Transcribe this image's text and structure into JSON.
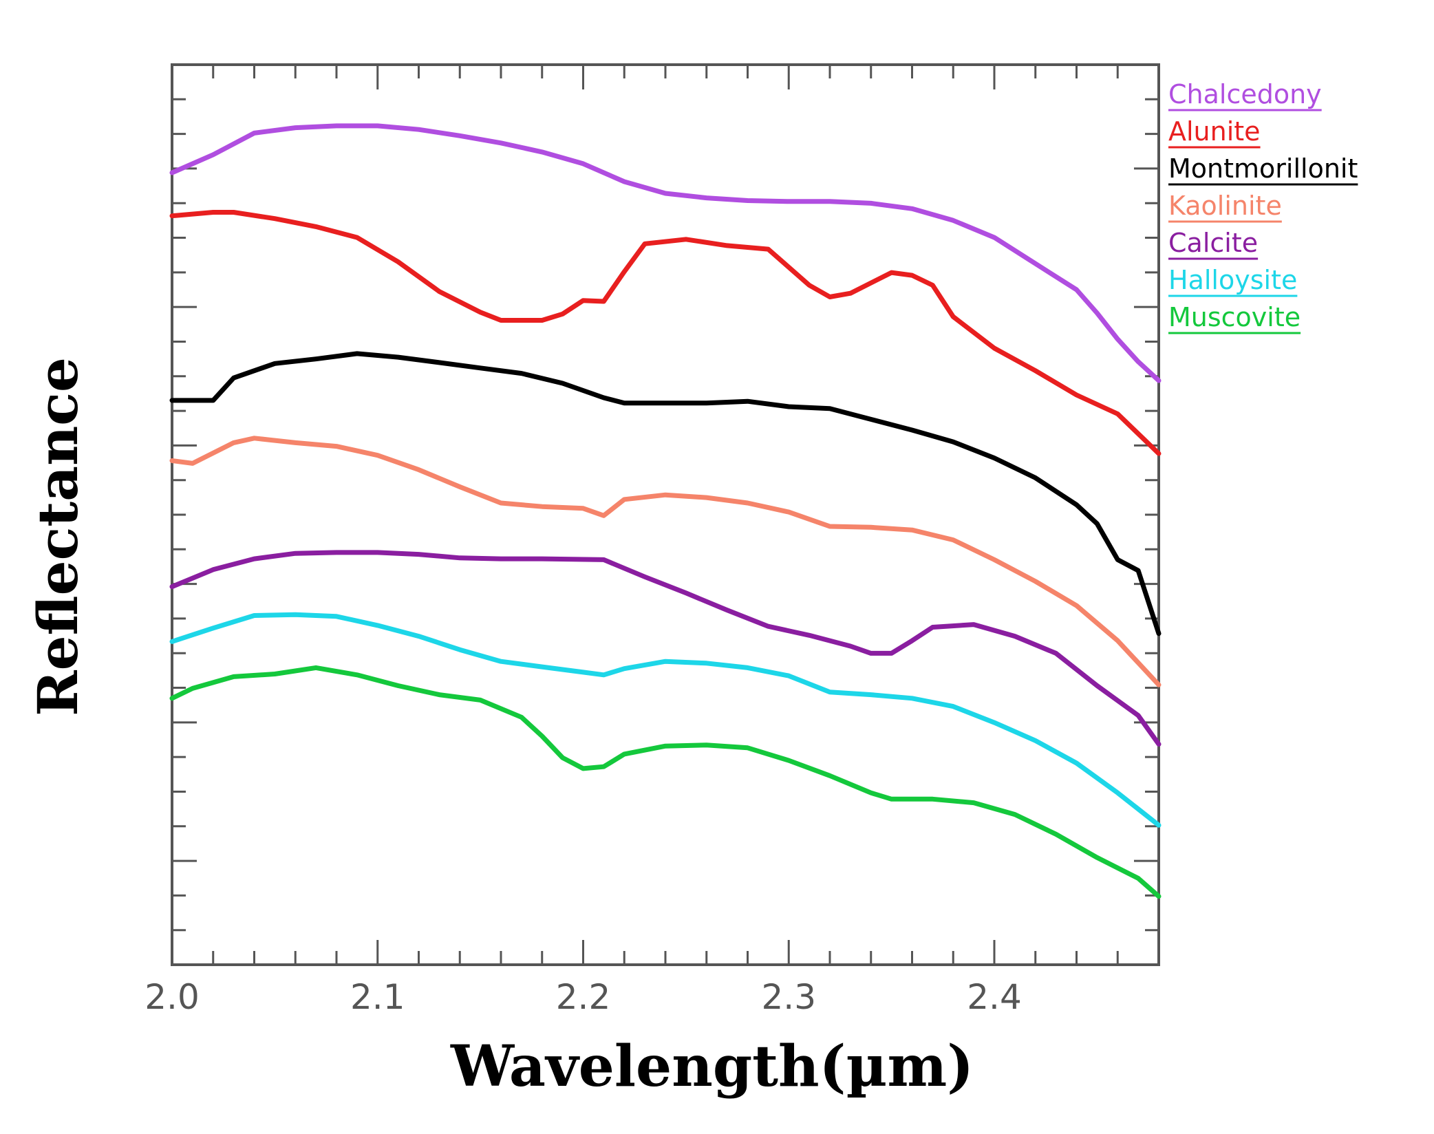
{
  "chart_data": {
    "type": "line",
    "title": "",
    "xlabel": "Wavelength(µm)",
    "ylabel": "Reflectance",
    "xlim": [
      2.0,
      2.48
    ],
    "ylim": [
      0,
      1
    ],
    "x_ticks": [
      "2.0",
      "2.1",
      "2.2",
      "2.3",
      "2.4"
    ],
    "x_tick_values": [
      2.0,
      2.1,
      2.2,
      2.3,
      2.4
    ],
    "grid": false,
    "legend_position": "right",
    "series": [
      {
        "name": "Chalcedony",
        "color": "#b04ee0",
        "points": [
          [
            2.0,
            0.88
          ],
          [
            2.02,
            0.9
          ],
          [
            2.04,
            0.924
          ],
          [
            2.06,
            0.93
          ],
          [
            2.08,
            0.932
          ],
          [
            2.1,
            0.932
          ],
          [
            2.12,
            0.928
          ],
          [
            2.14,
            0.921
          ],
          [
            2.16,
            0.913
          ],
          [
            2.18,
            0.903
          ],
          [
            2.2,
            0.89
          ],
          [
            2.22,
            0.87
          ],
          [
            2.24,
            0.857
          ],
          [
            2.26,
            0.852
          ],
          [
            2.28,
            0.849
          ],
          [
            2.3,
            0.848
          ],
          [
            2.32,
            0.848
          ],
          [
            2.34,
            0.846
          ],
          [
            2.36,
            0.84
          ],
          [
            2.38,
            0.827
          ],
          [
            2.4,
            0.808
          ],
          [
            2.42,
            0.779
          ],
          [
            2.44,
            0.75
          ],
          [
            2.45,
            0.724
          ],
          [
            2.46,
            0.695
          ],
          [
            2.47,
            0.67
          ],
          [
            2.48,
            0.649
          ]
        ]
      },
      {
        "name": "Alunite",
        "color": "#e81f1f",
        "points": [
          [
            2.0,
            0.832
          ],
          [
            2.02,
            0.836
          ],
          [
            2.03,
            0.836
          ],
          [
            2.05,
            0.829
          ],
          [
            2.07,
            0.82
          ],
          [
            2.09,
            0.808
          ],
          [
            2.11,
            0.781
          ],
          [
            2.13,
            0.748
          ],
          [
            2.15,
            0.725
          ],
          [
            2.16,
            0.716
          ],
          [
            2.18,
            0.716
          ],
          [
            2.19,
            0.723
          ],
          [
            2.2,
            0.738
          ],
          [
            2.21,
            0.737
          ],
          [
            2.22,
            0.77
          ],
          [
            2.23,
            0.801
          ],
          [
            2.25,
            0.806
          ],
          [
            2.27,
            0.799
          ],
          [
            2.29,
            0.795
          ],
          [
            2.31,
            0.755
          ],
          [
            2.32,
            0.742
          ],
          [
            2.33,
            0.746
          ],
          [
            2.35,
            0.769
          ],
          [
            2.36,
            0.766
          ],
          [
            2.37,
            0.755
          ],
          [
            2.38,
            0.72
          ],
          [
            2.4,
            0.685
          ],
          [
            2.42,
            0.66
          ],
          [
            2.44,
            0.633
          ],
          [
            2.46,
            0.612
          ],
          [
            2.48,
            0.568
          ]
        ]
      },
      {
        "name": "Montmorillonit",
        "color": "#000000",
        "points": [
          [
            2.0,
            0.627
          ],
          [
            2.02,
            0.627
          ],
          [
            2.03,
            0.652
          ],
          [
            2.05,
            0.668
          ],
          [
            2.07,
            0.673
          ],
          [
            2.09,
            0.679
          ],
          [
            2.11,
            0.675
          ],
          [
            2.13,
            0.669
          ],
          [
            2.15,
            0.663
          ],
          [
            2.17,
            0.657
          ],
          [
            2.19,
            0.646
          ],
          [
            2.21,
            0.63
          ],
          [
            2.22,
            0.624
          ],
          [
            2.24,
            0.624
          ],
          [
            2.26,
            0.624
          ],
          [
            2.28,
            0.626
          ],
          [
            2.3,
            0.62
          ],
          [
            2.32,
            0.618
          ],
          [
            2.34,
            0.606
          ],
          [
            2.36,
            0.594
          ],
          [
            2.38,
            0.581
          ],
          [
            2.4,
            0.563
          ],
          [
            2.42,
            0.541
          ],
          [
            2.44,
            0.511
          ],
          [
            2.45,
            0.49
          ],
          [
            2.46,
            0.45
          ],
          [
            2.47,
            0.438
          ],
          [
            2.48,
            0.368
          ]
        ]
      },
      {
        "name": "Kaolinite",
        "color": "#f5846a",
        "points": [
          [
            2.0,
            0.56
          ],
          [
            2.01,
            0.557
          ],
          [
            2.03,
            0.58
          ],
          [
            2.04,
            0.585
          ],
          [
            2.06,
            0.58
          ],
          [
            2.08,
            0.576
          ],
          [
            2.1,
            0.566
          ],
          [
            2.12,
            0.55
          ],
          [
            2.14,
            0.531
          ],
          [
            2.16,
            0.513
          ],
          [
            2.18,
            0.509
          ],
          [
            2.2,
            0.507
          ],
          [
            2.21,
            0.499
          ],
          [
            2.22,
            0.517
          ],
          [
            2.24,
            0.522
          ],
          [
            2.26,
            0.519
          ],
          [
            2.28,
            0.513
          ],
          [
            2.3,
            0.503
          ],
          [
            2.32,
            0.487
          ],
          [
            2.34,
            0.486
          ],
          [
            2.36,
            0.483
          ],
          [
            2.38,
            0.472
          ],
          [
            2.4,
            0.45
          ],
          [
            2.42,
            0.426
          ],
          [
            2.44,
            0.399
          ],
          [
            2.46,
            0.36
          ],
          [
            2.48,
            0.311
          ]
        ]
      },
      {
        "name": "Calcite",
        "color": "#8a1ea0",
        "points": [
          [
            2.0,
            0.42
          ],
          [
            2.02,
            0.439
          ],
          [
            2.04,
            0.451
          ],
          [
            2.06,
            0.457
          ],
          [
            2.08,
            0.458
          ],
          [
            2.1,
            0.458
          ],
          [
            2.12,
            0.456
          ],
          [
            2.14,
            0.452
          ],
          [
            2.16,
            0.451
          ],
          [
            2.18,
            0.451
          ],
          [
            2.21,
            0.45
          ],
          [
            2.23,
            0.431
          ],
          [
            2.25,
            0.413
          ],
          [
            2.27,
            0.394
          ],
          [
            2.29,
            0.376
          ],
          [
            2.31,
            0.366
          ],
          [
            2.33,
            0.354
          ],
          [
            2.34,
            0.346
          ],
          [
            2.35,
            0.346
          ],
          [
            2.36,
            0.36
          ],
          [
            2.37,
            0.375
          ],
          [
            2.39,
            0.378
          ],
          [
            2.41,
            0.365
          ],
          [
            2.43,
            0.346
          ],
          [
            2.45,
            0.31
          ],
          [
            2.47,
            0.277
          ],
          [
            2.48,
            0.245
          ]
        ]
      },
      {
        "name": "Halloysite",
        "color": "#1dd6e8",
        "points": [
          [
            2.0,
            0.359
          ],
          [
            2.02,
            0.374
          ],
          [
            2.04,
            0.388
          ],
          [
            2.06,
            0.389
          ],
          [
            2.08,
            0.387
          ],
          [
            2.1,
            0.377
          ],
          [
            2.12,
            0.365
          ],
          [
            2.14,
            0.35
          ],
          [
            2.16,
            0.337
          ],
          [
            2.18,
            0.331
          ],
          [
            2.2,
            0.325
          ],
          [
            2.21,
            0.322
          ],
          [
            2.22,
            0.329
          ],
          [
            2.24,
            0.337
          ],
          [
            2.26,
            0.335
          ],
          [
            2.28,
            0.33
          ],
          [
            2.3,
            0.321
          ],
          [
            2.32,
            0.303
          ],
          [
            2.34,
            0.3
          ],
          [
            2.36,
            0.296
          ],
          [
            2.38,
            0.287
          ],
          [
            2.4,
            0.269
          ],
          [
            2.42,
            0.249
          ],
          [
            2.44,
            0.224
          ],
          [
            2.46,
            0.191
          ],
          [
            2.48,
            0.155
          ]
        ]
      },
      {
        "name": "Muscovite",
        "color": "#14c83c",
        "points": [
          [
            2.0,
            0.296
          ],
          [
            2.01,
            0.307
          ],
          [
            2.03,
            0.32
          ],
          [
            2.05,
            0.323
          ],
          [
            2.07,
            0.33
          ],
          [
            2.09,
            0.322
          ],
          [
            2.11,
            0.31
          ],
          [
            2.13,
            0.3
          ],
          [
            2.15,
            0.294
          ],
          [
            2.17,
            0.275
          ],
          [
            2.18,
            0.254
          ],
          [
            2.19,
            0.23
          ],
          [
            2.2,
            0.218
          ],
          [
            2.21,
            0.22
          ],
          [
            2.22,
            0.234
          ],
          [
            2.24,
            0.243
          ],
          [
            2.26,
            0.244
          ],
          [
            2.28,
            0.241
          ],
          [
            2.3,
            0.227
          ],
          [
            2.32,
            0.21
          ],
          [
            2.34,
            0.191
          ],
          [
            2.35,
            0.184
          ],
          [
            2.37,
            0.184
          ],
          [
            2.39,
            0.18
          ],
          [
            2.41,
            0.167
          ],
          [
            2.43,
            0.145
          ],
          [
            2.45,
            0.119
          ],
          [
            2.47,
            0.096
          ],
          [
            2.48,
            0.076
          ]
        ]
      }
    ]
  }
}
